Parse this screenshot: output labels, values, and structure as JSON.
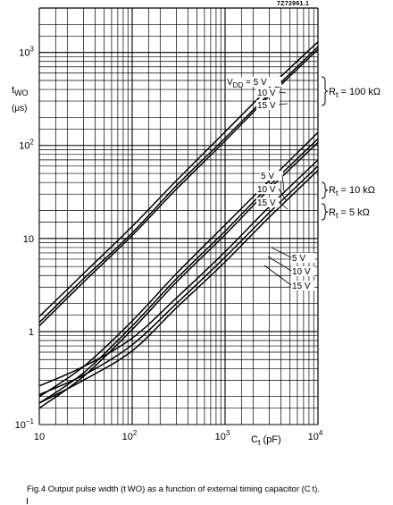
{
  "figure": {
    "reference": "7Z72961.1",
    "caption": "Fig.4  Output pulse width (t WO) as a function of external timing capacitor (C t)."
  },
  "chart_data": {
    "type": "line",
    "title": "",
    "xscale": "log",
    "yscale": "log",
    "xlim": [
      10,
      10000
    ],
    "ylim": [
      0.1,
      3000
    ],
    "grid": true,
    "x_ticks": [
      {
        "value": 10,
        "base": "10",
        "exp": ""
      },
      {
        "value": 100,
        "base": "10",
        "exp": "2"
      },
      {
        "value": 1000,
        "base": "10",
        "exp": "3"
      },
      {
        "value": 10000,
        "base": "10",
        "exp": "4"
      }
    ],
    "y_ticks": [
      {
        "value": 0.1,
        "base": "10",
        "exp": "−1"
      },
      {
        "value": 1,
        "base": "1",
        "exp": ""
      },
      {
        "value": 10,
        "base": "10",
        "exp": ""
      },
      {
        "value": 100,
        "base": "10",
        "exp": "2"
      },
      {
        "value": 1000,
        "base": "10",
        "exp": "3"
      }
    ],
    "xlabel": {
      "main": "C",
      "sub": "t",
      "unit": "(pF)"
    },
    "ylabel": {
      "main": "t",
      "sub": "WO",
      "unit": "(μs)"
    },
    "groups": [
      {
        "label_main": "R",
        "label_sub": "t",
        "label_value": "= 100 kΩ",
        "series": [
          {
            "name": "V_DD = 5 V",
            "x": [
              10,
              30,
              100,
              300,
              1000,
              3000,
              10000
            ],
            "y": [
              1.45,
              4.2,
              13.5,
              42,
              140,
              420,
              1300
            ]
          },
          {
            "name": "V_DD = 10 V",
            "x": [
              10,
              30,
              100,
              300,
              1000,
              3000,
              10000
            ],
            "y": [
              1.25,
              3.7,
              11.5,
              37,
              120,
              360,
              1150
            ]
          },
          {
            "name": "V_DD = 15 V",
            "x": [
              10,
              30,
              100,
              300,
              1000,
              3000,
              10000
            ],
            "y": [
              1.15,
              3.4,
              10.8,
              34,
              112,
              340,
              1080
            ]
          }
        ]
      },
      {
        "label_main": "R",
        "label_sub": "t",
        "label_value": "= 10 kΩ",
        "series": [
          {
            "name": "5 V",
            "x": [
              10,
              30,
              100,
              300,
              1000,
              3000,
              10000
            ],
            "y": [
              0.2,
              0.42,
              1.3,
              4.2,
              14,
              42,
              138
            ]
          },
          {
            "name": "10 V",
            "x": [
              10,
              30,
              100,
              300,
              1000,
              3000,
              10000
            ],
            "y": [
              0.17,
              0.36,
              1.15,
              3.7,
              12,
              37,
              118
            ]
          },
          {
            "name": "15 V",
            "x": [
              10,
              30,
              100,
              300,
              1000,
              3000,
              10000
            ],
            "y": [
              0.15,
              0.33,
              1.05,
              3.4,
              11,
              34,
              108
            ]
          }
        ]
      },
      {
        "label_main": "R",
        "label_sub": "t",
        "label_value": "= 5 kΩ",
        "series": [
          {
            "name": "5 V",
            "x": [
              10,
              30,
              100,
              300,
              1000,
              3000,
              10000
            ],
            "y": [
              0.26,
              0.42,
              0.85,
              2.3,
              7.2,
              22,
              70
            ]
          },
          {
            "name": "10 V",
            "x": [
              10,
              30,
              100,
              300,
              1000,
              3000,
              10000
            ],
            "y": [
              0.21,
              0.34,
              0.72,
              2.0,
              6.3,
              19,
              60
            ]
          },
          {
            "name": "15 V",
            "x": [
              10,
              30,
              100,
              300,
              1000,
              3000,
              10000
            ],
            "y": [
              0.17,
              0.3,
              0.62,
              1.8,
              5.6,
              17,
              54
            ]
          }
        ]
      }
    ],
    "curve_labels": [
      {
        "prefix_main": "V",
        "prefix_sub": "DD",
        "prefix_rest": " = ",
        "text": "5 V"
      },
      {
        "text": "10 V"
      },
      {
        "text": "15 V"
      },
      {
        "text": "5 V"
      },
      {
        "text": "10 V"
      },
      {
        "text": "15 V"
      },
      {
        "text": "5 V"
      },
      {
        "text": "10 V"
      },
      {
        "text": "15 V"
      }
    ]
  }
}
